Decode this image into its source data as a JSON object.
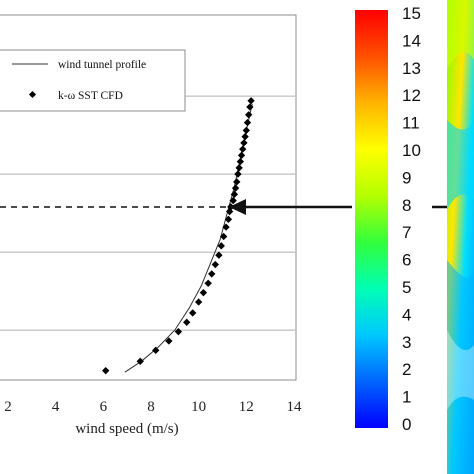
{
  "chart_data": {
    "type": "line",
    "xlabel": "wind speed (m/s)",
    "xticks": [
      2,
      4,
      6,
      8,
      10,
      12,
      14
    ],
    "xlim": [
      1.5,
      14
    ],
    "ylim": [
      0,
      10
    ],
    "grid": "horizontal",
    "legend_position": "top-left",
    "series": [
      {
        "name": "wind tunnel profile",
        "kind": "line",
        "x": [
          6.9,
          7.6,
          8.3,
          9.0,
          9.6,
          10.1,
          10.5,
          10.9,
          11.2,
          11.5,
          11.75,
          12.0,
          12.25
        ],
        "y": [
          0.25,
          0.6,
          1.05,
          1.6,
          2.3,
          3.0,
          3.75,
          4.5,
          5.35,
          6.2,
          7.1,
          8.0,
          8.85
        ]
      },
      {
        "name": "k-ω SST CFD",
        "kind": "scatter",
        "x": [
          6.1,
          7.55,
          8.2,
          8.75,
          9.15,
          9.5,
          9.75,
          10.0,
          10.2,
          10.4,
          10.55,
          10.7,
          10.85,
          10.95,
          11.05,
          11.15,
          11.25,
          11.3,
          11.35,
          11.45,
          11.5,
          11.55,
          11.6,
          11.65,
          11.7,
          11.75,
          11.8,
          11.85,
          11.9,
          11.95,
          12.0,
          12.05,
          12.1,
          12.15,
          12.2
        ],
        "y": [
          0.3,
          0.6,
          0.95,
          1.25,
          1.55,
          1.85,
          2.15,
          2.5,
          2.8,
          3.1,
          3.4,
          3.7,
          4.0,
          4.3,
          4.6,
          4.9,
          5.15,
          5.4,
          5.55,
          5.75,
          5.95,
          6.15,
          6.35,
          6.6,
          6.8,
          7.0,
          7.2,
          7.4,
          7.6,
          7.8,
          8.0,
          8.25,
          8.5,
          8.75,
          8.95
        ]
      }
    ],
    "reference_line_y": 5.55
  },
  "colorbar": {
    "labels": [
      "15",
      "14",
      "13",
      "12",
      "11",
      "10",
      "9",
      "8",
      "7",
      "6",
      "5",
      "4",
      "3",
      "2",
      "1",
      "0"
    ],
    "min": 0,
    "max": 15,
    "colors": [
      "#0000ff",
      "#0064ff",
      "#00c8ff",
      "#00ffb4",
      "#32ff3c",
      "#b4ff00",
      "#ffff00",
      "#ffb400",
      "#ff5000",
      "#ff0000"
    ]
  }
}
